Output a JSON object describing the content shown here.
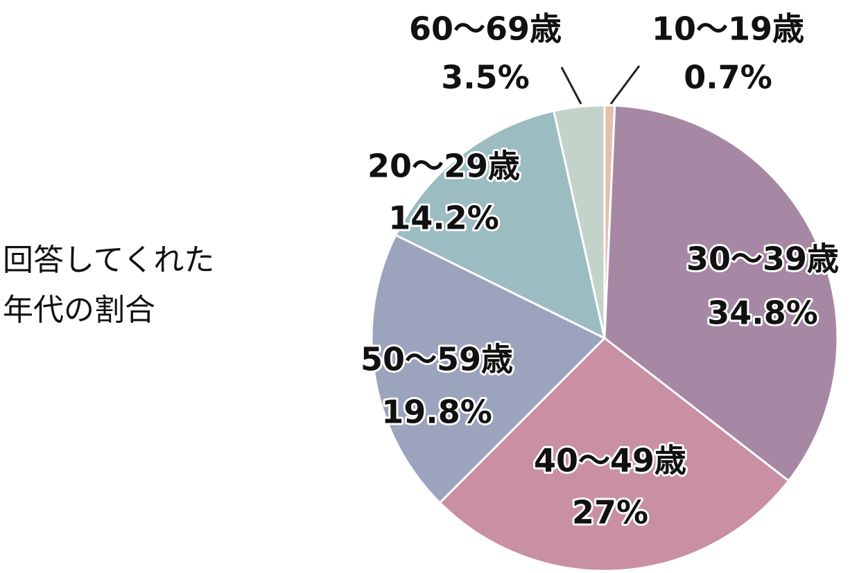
{
  "chart_data": {
    "type": "pie",
    "title": "回答してくれた年代の割合",
    "categories": [
      "10～19歳",
      "30～39歳",
      "40～49歳",
      "50～59歳",
      "20～29歳",
      "60～69歳"
    ],
    "values": [
      0.7,
      34.8,
      27,
      19.8,
      14.2,
      3.5
    ],
    "value_labels": [
      "0.7%",
      "34.8%",
      "27%",
      "19.8%",
      "14.2%",
      "3.5%"
    ],
    "colors": [
      "#e3bfae",
      "#a788a4",
      "#c98fa3",
      "#9ca3bd",
      "#9bbcc1",
      "#c3d3ca"
    ]
  }
}
